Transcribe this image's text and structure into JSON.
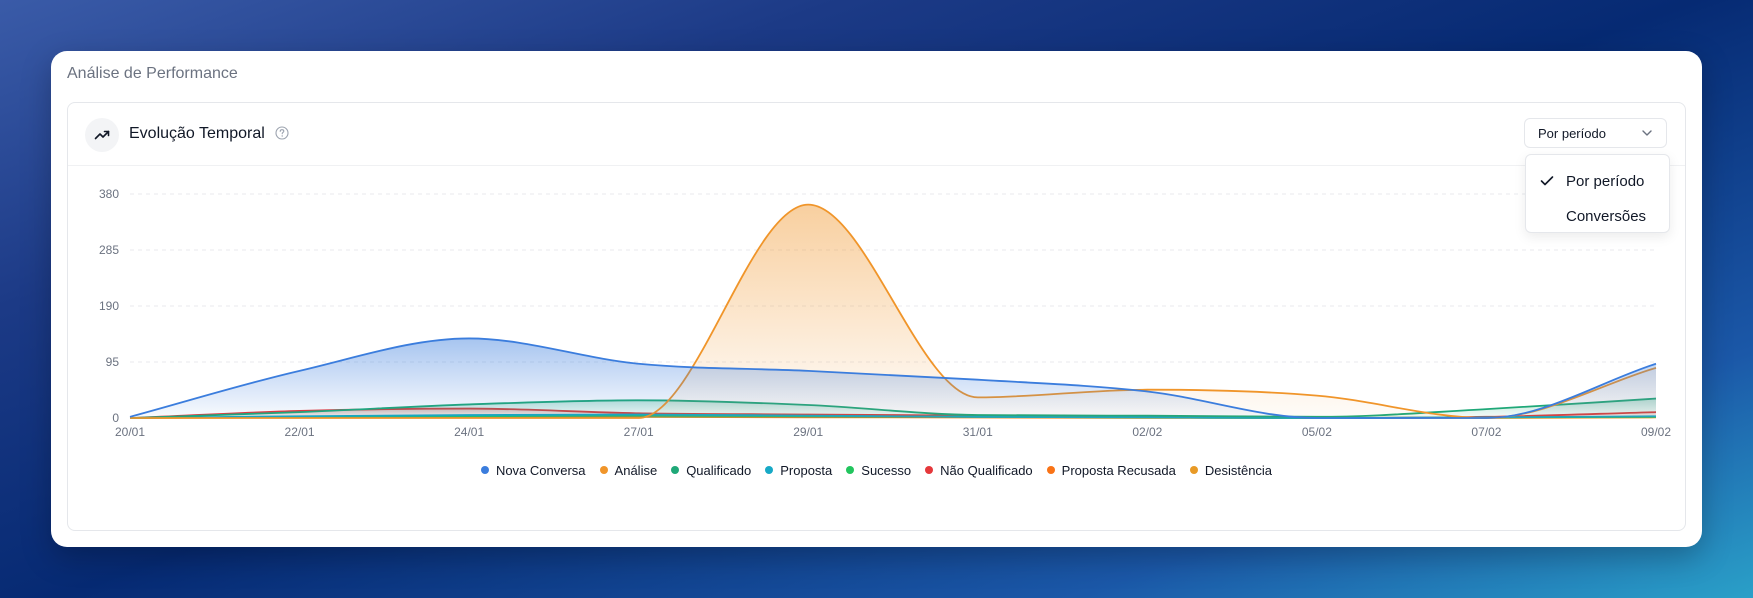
{
  "card": {
    "title": "Análise de Performance"
  },
  "panel": {
    "title": "Evolução Temporal",
    "select": {
      "value": "Por período",
      "options": [
        {
          "label": "Por período",
          "checked": true
        },
        {
          "label": "Conversões",
          "checked": false
        }
      ]
    }
  },
  "chart_data": {
    "type": "area",
    "title": "",
    "xlabel": "",
    "ylabel": "",
    "ylim": [
      0,
      380
    ],
    "yticks": [
      0,
      95,
      190,
      285,
      380
    ],
    "grid": true,
    "legend_position": "bottom",
    "categories": [
      "20/01",
      "22/01",
      "24/01",
      "27/01",
      "29/01",
      "31/01",
      "02/02",
      "05/02",
      "07/02",
      "09/02"
    ],
    "series": [
      {
        "name": "Nova Conversa",
        "color": "#3b7ddd",
        "values": [
          2,
          80,
          135,
          92,
          80,
          65,
          45,
          0,
          0,
          92
        ]
      },
      {
        "name": "Análise",
        "color": "#f0952a",
        "values": [
          0,
          0,
          0,
          0,
          362,
          35,
          48,
          38,
          0,
          85
        ]
      },
      {
        "name": "Qualificado",
        "color": "#1fa878",
        "values": [
          0,
          10,
          23,
          30,
          22,
          5,
          4,
          2,
          15,
          33
        ]
      },
      {
        "name": "Proposta",
        "color": "#17a9c6",
        "values": [
          0,
          3,
          5,
          6,
          4,
          2,
          1,
          0,
          1,
          3
        ]
      },
      {
        "name": "Sucesso",
        "color": "#22c55e",
        "values": [
          0,
          2,
          3,
          4,
          3,
          2,
          1,
          0,
          1,
          2
        ]
      },
      {
        "name": "Não Qualificado",
        "color": "#e5383b",
        "values": [
          0,
          12,
          16,
          8,
          6,
          4,
          2,
          0,
          2,
          10
        ]
      },
      {
        "name": "Proposta Recusada",
        "color": "#f97316",
        "values": [
          0,
          2,
          3,
          3,
          2,
          1,
          1,
          0,
          1,
          2
        ]
      },
      {
        "name": "Desistência",
        "color": "#e89a26",
        "values": [
          0,
          1,
          2,
          2,
          1,
          1,
          0,
          0,
          0,
          1
        ]
      }
    ]
  }
}
